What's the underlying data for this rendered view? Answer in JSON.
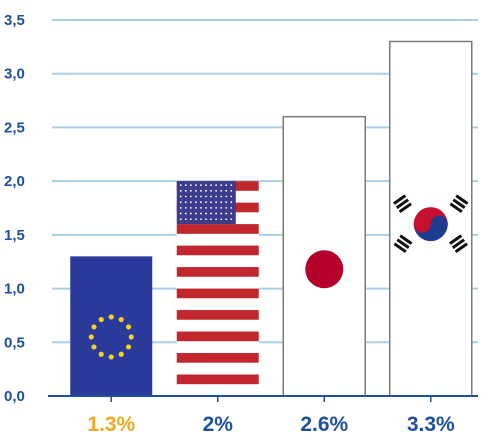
{
  "chart_data": {
    "type": "bar",
    "categories": [
      "EU",
      "USA",
      "Japan",
      "South Korea"
    ],
    "values": [
      1.3,
      2.0,
      2.6,
      3.3
    ],
    "data_labels": [
      "1.3%",
      "2%",
      "2.6%",
      "3.3%"
    ],
    "label_colors": [
      "#f5a623",
      "#1f4fa0",
      "#1f4fa0",
      "#1f4fa0"
    ],
    "bar_styles": [
      "flag-eu",
      "flag-usa",
      "flag-japan",
      "flag-korea"
    ],
    "yticks": [
      "0,0",
      "0,5",
      "1,0",
      "1,5",
      "2,0",
      "2,5",
      "3,0",
      "3,5"
    ],
    "ytick_values": [
      0,
      0.5,
      1.0,
      1.5,
      2.0,
      2.5,
      3.0,
      3.5
    ],
    "ylim": [
      0,
      3.5
    ],
    "grid": true,
    "title": "",
    "xlabel": "",
    "ylabel": "",
    "colors": {
      "grid": "#a9d0e6",
      "axis": "#1f4fa0",
      "eu_blue": "#2b3a9a",
      "eu_star": "#f2d21b",
      "us_red": "#c1272d",
      "us_blue": "#3c3b8e",
      "japan_red": "#b5002c",
      "korea_red": "#c8102e",
      "korea_blue": "#1d3c8f",
      "bar_outline": "#7a7a7a"
    }
  }
}
